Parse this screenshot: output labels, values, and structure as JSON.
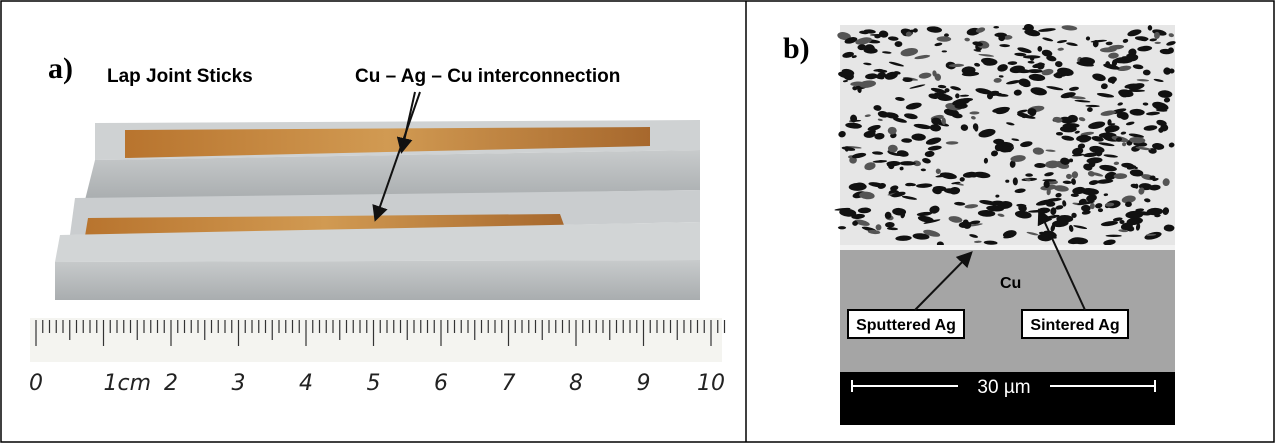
{
  "panels": [
    {
      "label": "a)",
      "annotations": [
        "Lap Joint Sticks",
        "Cu – Ag – Cu interconnection"
      ],
      "ruler": [
        "0",
        "1cm",
        "2",
        "3",
        "4",
        "5",
        "6",
        "7",
        "8",
        "9",
        "10"
      ]
    },
    {
      "label": "b)",
      "annotations": [
        "Cu",
        "Sputtered Ag",
        "Sintered Ag"
      ],
      "scale": "30 µm"
    }
  ]
}
